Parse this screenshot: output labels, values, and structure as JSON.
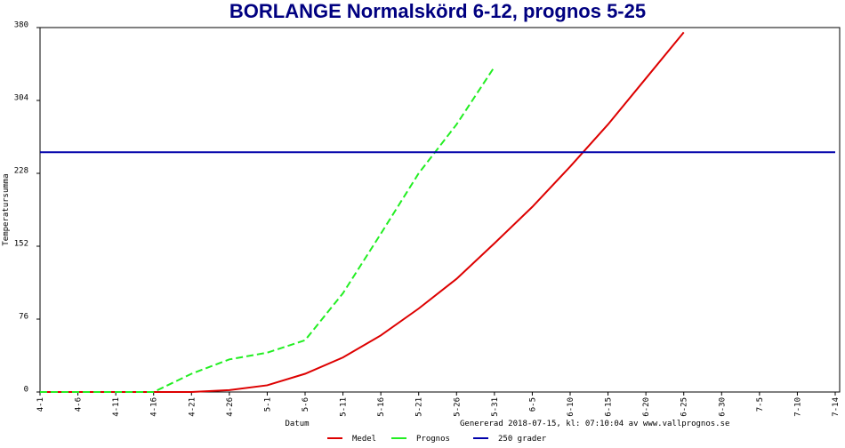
{
  "chart_data": {
    "type": "line",
    "title": "BORLANGE Normalskörd 6-12, prognos 5-25",
    "ylabel": "Temperatursumma",
    "xlabel": "Datum",
    "note": "Genererad 2018-07-15, kl: 07:10:04 av www.vallprognos.se",
    "categories": [
      "4-1",
      "4-6",
      "4-11",
      "4-16",
      "4-21",
      "4-26",
      "5-1",
      "5-6",
      "5-11",
      "5-16",
      "5-21",
      "5-26",
      "5-31",
      "6-5",
      "6-10",
      "6-15",
      "6-20",
      "6-25",
      "6-30",
      "7-5",
      "7-10",
      "7-14"
    ],
    "ylim": [
      0,
      380
    ],
    "yticks": [
      0,
      76,
      152,
      228,
      304,
      380
    ],
    "grid": false,
    "series": [
      {
        "name": "Medel",
        "color": "#dd0000",
        "dashed": false,
        "values": [
          0,
          0,
          0,
          0,
          0,
          2,
          7,
          19,
          36,
          59,
          87,
          118,
          155,
          193,
          235,
          279,
          327,
          375,
          null,
          null,
          null,
          null
        ]
      },
      {
        "name": "Prognos",
        "color": "#22ee22",
        "dashed": true,
        "values": [
          0,
          0,
          0,
          0,
          19,
          34,
          41,
          54,
          103,
          165,
          228,
          279,
          339,
          null,
          null,
          null,
          null,
          null,
          null,
          null,
          null,
          null
        ]
      },
      {
        "name": "250 grader",
        "color": "#0000aa",
        "dashed": false,
        "values": [
          250,
          250,
          250,
          250,
          250,
          250,
          250,
          250,
          250,
          250,
          250,
          250,
          250,
          250,
          250,
          250,
          250,
          250,
          250,
          250,
          250,
          250
        ]
      }
    ]
  }
}
